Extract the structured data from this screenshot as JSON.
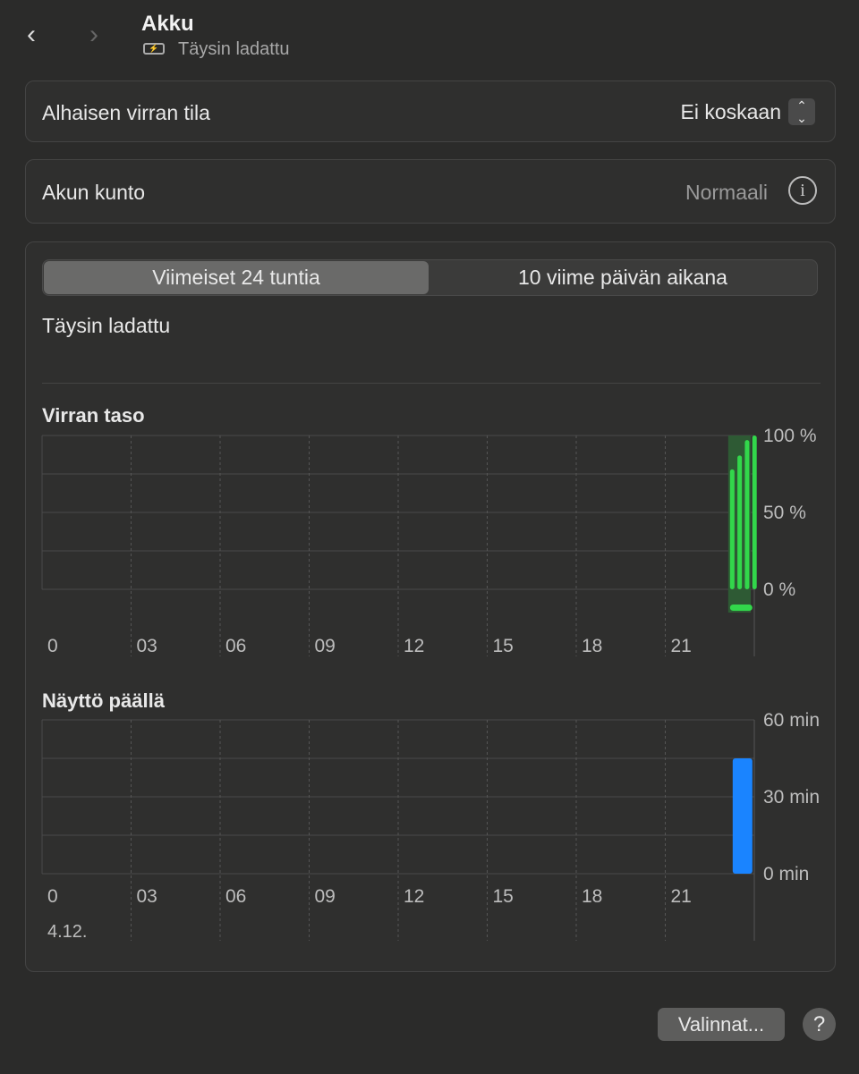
{
  "header": {
    "title": "Akku",
    "subtitle": "Täysin ladattu",
    "battery_icon": "battery-charging-icon"
  },
  "low_power": {
    "label": "Alhaisen virran tila",
    "value": "Ei koskaan"
  },
  "health": {
    "label": "Akun kunto",
    "value": "Normaali"
  },
  "tabs": [
    {
      "label": "Viimeiset 24 tuntia",
      "selected": true
    },
    {
      "label": "10 viime päivän aikana",
      "selected": false
    }
  ],
  "status": "Täysin ladattu",
  "footer": {
    "options": "Valinnat...",
    "help": "?"
  },
  "chart_data": [
    {
      "type": "bar",
      "title": "Virran taso",
      "x_ticks": [
        "0",
        "03",
        "06",
        "09",
        "12",
        "15",
        "18",
        "21"
      ],
      "y_ticks": [
        "100 %",
        "50 %",
        "0 %"
      ],
      "ylim": [
        0,
        100
      ],
      "color": "#32d74b",
      "charging": true,
      "hours": [
        23,
        23.25,
        23.5,
        23.75
      ],
      "values": [
        78,
        87,
        97,
        100
      ]
    },
    {
      "type": "bar",
      "title": "Näyttö päällä",
      "x_ticks": [
        "0",
        "03",
        "06",
        "09",
        "12",
        "15",
        "18",
        "21"
      ],
      "y_ticks": [
        "60 min",
        "30 min",
        "0 min"
      ],
      "ylim": [
        0,
        60
      ],
      "color": "#1a84ff",
      "hours": [
        23
      ],
      "values": [
        45
      ],
      "date": "4.12."
    }
  ]
}
